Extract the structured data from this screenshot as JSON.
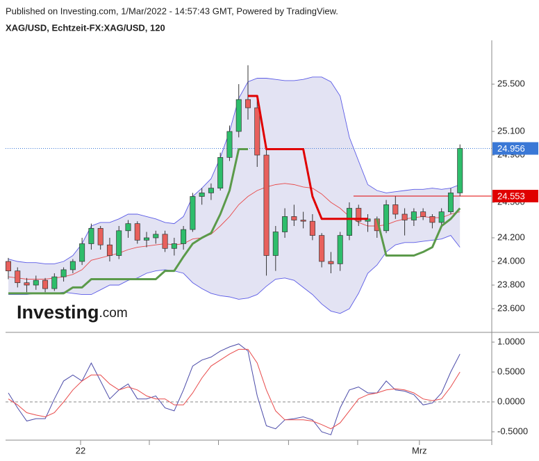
{
  "header": {
    "published": "Published on Investing.com, 1/Mar/2022 - 14:57:43 GMT, Powered by TradingView.",
    "symbol": "XAG/USD, Echtzeit-FX:XAG/USD, 120"
  },
  "watermark": {
    "brand": "Investing",
    "suffix": ".com"
  },
  "chart_data": [
    {
      "type": "candlestick",
      "xlim": [
        -0.3,
        52.45
      ],
      "ylim": [
        23.447,
        25.859
      ],
      "yticks": [
        {
          "value": 25.5,
          "label": "25.500"
        },
        {
          "value": 25.1,
          "label": "25.100"
        },
        {
          "value": 24.9,
          "label": "24.900"
        },
        {
          "value": 24.5,
          "label": "24.500"
        },
        {
          "value": 24.2,
          "label": "24.200"
        },
        {
          "value": 24.0,
          "label": "24.000"
        },
        {
          "value": 23.8,
          "label": "23.800"
        },
        {
          "value": 23.6,
          "label": "23.600"
        }
      ],
      "up_color": "#2ebd6b",
      "down_color": "#e8605c",
      "open": [
        24.0,
        23.92,
        23.82,
        23.8,
        23.84,
        23.77,
        23.87,
        23.93,
        24.0,
        24.15,
        24.28,
        24.14,
        24.05,
        24.26,
        24.32,
        24.18,
        24.2,
        24.23,
        24.11,
        24.15,
        24.27,
        24.55,
        24.58,
        24.62,
        24.88,
        25.1,
        25.37,
        25.3,
        24.9,
        24.05,
        24.25,
        24.38,
        24.35,
        24.34,
        24.22,
        24.0,
        23.98,
        24.22,
        24.45,
        24.34,
        24.36,
        24.26,
        24.48,
        24.4,
        24.35,
        24.42,
        24.38,
        24.33,
        24.42,
        24.58
      ],
      "high": [
        24.03,
        23.95,
        23.86,
        23.88,
        23.86,
        23.9,
        23.95,
        24.02,
        24.2,
        24.32,
        24.3,
        24.2,
        24.3,
        24.35,
        24.34,
        24.25,
        24.26,
        24.26,
        24.2,
        24.3,
        24.58,
        24.62,
        24.66,
        24.92,
        25.15,
        25.5,
        25.66,
        25.4,
        24.95,
        24.3,
        24.45,
        24.48,
        24.42,
        24.4,
        24.24,
        24.08,
        24.25,
        24.5,
        24.48,
        24.4,
        24.38,
        24.52,
        24.55,
        24.45,
        24.45,
        24.45,
        24.4,
        24.45,
        24.62,
        24.99
      ],
      "low": [
        23.85,
        23.78,
        23.74,
        23.76,
        23.74,
        23.75,
        23.83,
        23.9,
        23.97,
        24.1,
        24.1,
        24.0,
        24.02,
        24.2,
        24.15,
        24.12,
        24.15,
        24.08,
        24.05,
        24.1,
        24.25,
        24.48,
        24.52,
        24.6,
        24.85,
        25.05,
        25.2,
        24.8,
        23.88,
        23.92,
        24.2,
        24.3,
        24.28,
        24.18,
        23.95,
        23.9,
        23.92,
        24.18,
        24.3,
        24.25,
        24.2,
        24.24,
        24.36,
        24.22,
        24.3,
        24.35,
        24.28,
        24.3,
        24.4,
        24.55
      ],
      "close": [
        23.92,
        23.82,
        23.8,
        23.84,
        23.77,
        23.87,
        23.93,
        24.0,
        24.15,
        24.28,
        24.14,
        24.05,
        24.26,
        24.32,
        24.18,
        24.2,
        24.23,
        24.11,
        24.15,
        24.27,
        24.55,
        24.58,
        24.62,
        24.88,
        25.1,
        25.37,
        25.3,
        24.9,
        24.05,
        24.25,
        24.38,
        24.35,
        24.34,
        24.22,
        24.0,
        23.98,
        24.22,
        24.45,
        24.34,
        24.36,
        24.26,
        24.48,
        24.4,
        24.35,
        24.42,
        24.38,
        24.33,
        24.42,
        24.58,
        24.956
      ],
      "bands": {
        "fill": "#e3e3f3",
        "edge_color": "#5a5ae6",
        "middle_color": "#e84a4a",
        "upper": [
          24.02,
          24.0,
          23.99,
          23.99,
          23.98,
          23.98,
          24.0,
          24.05,
          24.15,
          24.3,
          24.33,
          24.33,
          24.36,
          24.4,
          24.4,
          24.38,
          24.36,
          24.33,
          24.32,
          24.38,
          24.55,
          24.62,
          24.7,
          24.88,
          25.1,
          25.38,
          25.52,
          25.55,
          25.55,
          25.54,
          25.53,
          25.53,
          25.54,
          25.56,
          25.56,
          25.52,
          25.4,
          25.05,
          24.85,
          24.65,
          24.6,
          24.58,
          24.59,
          24.6,
          24.61,
          24.61,
          24.62,
          24.61,
          24.62,
          24.65
        ],
        "middle": [
          23.87,
          23.86,
          23.85,
          23.85,
          23.85,
          23.86,
          23.87,
          23.89,
          23.93,
          24.01,
          24.03,
          24.05,
          24.07,
          24.1,
          24.12,
          24.13,
          24.14,
          24.15,
          24.14,
          24.15,
          24.19,
          24.2,
          24.23,
          24.3,
          24.38,
          24.48,
          24.55,
          24.6,
          24.63,
          24.65,
          24.66,
          24.65,
          24.63,
          24.62,
          24.57,
          24.5,
          24.45,
          24.38,
          24.33,
          24.3,
          24.3,
          24.31,
          24.34,
          24.36,
          24.37,
          24.38,
          24.37,
          24.37,
          24.4,
          24.42
        ],
        "lower": [
          23.72,
          23.72,
          23.72,
          23.73,
          23.73,
          23.73,
          23.74,
          23.73,
          23.72,
          23.72,
          23.76,
          23.8,
          23.8,
          23.84,
          23.86,
          23.9,
          23.92,
          23.93,
          23.92,
          23.9,
          23.82,
          23.77,
          23.73,
          23.71,
          23.7,
          23.68,
          23.69,
          23.72,
          23.79,
          23.85,
          23.86,
          23.84,
          23.78,
          23.72,
          23.64,
          23.58,
          23.56,
          23.6,
          23.73,
          23.9,
          23.97,
          24.08,
          24.14,
          24.16,
          24.16,
          24.17,
          24.18,
          24.19,
          24.22,
          24.12
        ]
      },
      "series": [
        {
          "color": "#5b9a4a",
          "values": [
            23.73,
            23.73,
            23.73,
            23.73,
            23.73,
            23.73,
            23.73,
            23.78,
            23.78,
            23.85,
            23.85,
            23.85,
            23.85,
            23.85,
            23.85,
            23.85,
            23.85,
            23.92,
            23.92,
            24.04,
            24.15,
            24.2,
            24.24,
            24.4,
            24.6,
            24.95,
            24.95,
            null,
            null,
            null,
            null,
            null,
            null,
            null,
            null,
            null,
            null,
            null,
            null,
            null,
            24.36,
            24.05,
            24.05,
            24.05,
            24.05,
            24.08,
            24.12,
            24.3,
            24.36,
            24.45
          ]
        },
        {
          "color": "#e00000",
          "values": [
            null,
            null,
            null,
            null,
            null,
            null,
            null,
            null,
            null,
            null,
            null,
            null,
            null,
            null,
            null,
            null,
            null,
            null,
            null,
            null,
            null,
            null,
            null,
            null,
            null,
            null,
            25.4,
            25.4,
            24.95,
            24.95,
            24.95,
            24.95,
            24.95,
            24.55,
            24.36,
            24.36,
            24.36,
            24.36,
            24.36,
            24.36,
            null,
            null,
            null,
            null,
            null,
            null,
            null,
            null,
            null,
            null
          ]
        }
      ],
      "last_price": {
        "value": 24.956,
        "color": "#3a78d6"
      },
      "price_line": {
        "value": 24.553,
        "color": "#e00000"
      }
    },
    {
      "type": "line",
      "xlim": [
        -0.3,
        52.45
      ],
      "ylim": [
        -0.628,
        1.14
      ],
      "yticks": [
        {
          "value": 1,
          "label": "1.0000"
        },
        {
          "value": 0.5,
          "label": "0.5000"
        },
        {
          "value": 0,
          "label": "0.0000"
        },
        {
          "value": -0.5,
          "label": "-0.5000"
        }
      ],
      "dashed_level": 0,
      "xticks": [
        {
          "value": 7.84,
          "label": "22"
        },
        {
          "value": 44.6,
          "label": "Mrz"
        }
      ],
      "x_minor_ticks": [
        15.3,
        22.8,
        30.4,
        37.9,
        52.45
      ],
      "series": [
        {
          "color": "#4a4aa8",
          "values": [
            0.15,
            -0.1,
            -0.32,
            -0.28,
            -0.28,
            0.05,
            0.35,
            0.45,
            0.35,
            0.65,
            0.35,
            0.05,
            0.2,
            0.3,
            0.05,
            0.05,
            0.1,
            -0.1,
            -0.15,
            0.2,
            0.6,
            0.7,
            0.75,
            0.85,
            0.92,
            0.97,
            0.85,
            0.1,
            -0.4,
            -0.45,
            -0.3,
            -0.28,
            -0.25,
            -0.3,
            -0.5,
            -0.55,
            -0.1,
            0.2,
            0.25,
            0.15,
            0.15,
            0.35,
            0.2,
            0.18,
            0.12,
            -0.05,
            -0.02,
            0.15,
            0.5,
            0.8
          ]
        },
        {
          "color": "#e84a4a",
          "values": [
            0.05,
            -0.05,
            -0.18,
            -0.22,
            -0.25,
            -0.18,
            0.0,
            0.2,
            0.35,
            0.45,
            0.45,
            0.3,
            0.2,
            0.25,
            0.2,
            0.1,
            0.05,
            0.05,
            -0.05,
            -0.05,
            0.15,
            0.4,
            0.6,
            0.7,
            0.8,
            0.88,
            0.88,
            0.65,
            0.2,
            -0.15,
            -0.3,
            -0.3,
            -0.3,
            -0.32,
            -0.38,
            -0.45,
            -0.35,
            -0.15,
            0.05,
            0.12,
            0.15,
            0.2,
            0.22,
            0.2,
            0.15,
            0.05,
            0.02,
            0.05,
            0.25,
            0.5
          ]
        }
      ]
    }
  ]
}
